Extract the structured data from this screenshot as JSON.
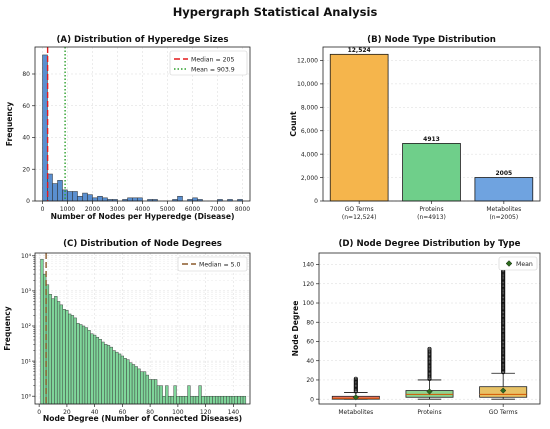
{
  "figure": {
    "title": "Hypergraph Statistical Analysis"
  },
  "chart_data": [
    {
      "id": "a",
      "type": "bar",
      "title": "(A) Distribution of Hyperedge Sizes",
      "xlabel": "Number of Nodes per Hyperedge (Disease)",
      "ylabel": "Frequency",
      "xlim": [
        -300,
        8300
      ],
      "ylim": [
        0,
        97
      ],
      "xticks": [
        0,
        1000,
        2000,
        3000,
        4000,
        5000,
        6000,
        7000,
        8000
      ],
      "yticks": [
        0,
        20,
        40,
        60,
        80
      ],
      "bin_width": 200,
      "bin_start": 0,
      "counts": [
        92,
        17,
        11,
        13,
        7,
        6,
        6,
        3,
        5,
        4,
        2,
        3,
        2,
        1,
        1,
        0,
        1,
        2,
        2,
        2,
        0,
        1,
        1,
        0,
        0,
        0,
        1,
        3,
        0,
        1,
        2,
        1,
        0,
        0,
        0,
        1,
        0,
        1,
        0,
        1
      ],
      "bar_color": "#5a8fd0",
      "lines": [
        {
          "label": "Median = 205",
          "value": 205,
          "color": "#e41a1c",
          "dash": "6 3"
        },
        {
          "label": "Mean = 903.9",
          "value": 903.9,
          "color": "#2ca02c",
          "dash": "1.5 2"
        }
      ],
      "legend_position": "top-right",
      "grid": true
    },
    {
      "id": "b",
      "type": "bar",
      "title": "(B) Node Type Distribution",
      "xlabel": "",
      "ylabel": "Count",
      "ylim": [
        0,
        13150
      ],
      "yticks": [
        0,
        2000,
        4000,
        6000,
        8000,
        10000,
        12000
      ],
      "ytick_labels": [
        "0",
        "2,000",
        "4,000",
        "6,000",
        "8,000",
        "10,000",
        "12,000"
      ],
      "categories": [
        {
          "label": "GO Terms",
          "sublabel": "(n=12,524)",
          "value": 12524,
          "value_label": "12,524",
          "color": "#f5b54c"
        },
        {
          "label": "Proteins",
          "sublabel": "(n=4913)",
          "value": 4913,
          "value_label": "4913",
          "color": "#6fcf8a"
        },
        {
          "label": "Metabolites",
          "sublabel": "(n=2005)",
          "value": 2005,
          "value_label": "2005",
          "color": "#6fa3e0"
        }
      ],
      "grid": true
    },
    {
      "id": "c",
      "type": "bar",
      "title": "(C) Distribution of Node Degrees",
      "xlabel": "Node Degree (Number of Connected Diseases)",
      "ylabel": "Frequency",
      "yscale": "log",
      "xlim": [
        -3,
        152
      ],
      "ylim": [
        0.6,
        12000
      ],
      "xticks": [
        0,
        20,
        40,
        60,
        80,
        100,
        120,
        140
      ],
      "yticks": [
        1,
        10,
        100,
        1000,
        10000
      ],
      "ytick_labels": [
        "10⁰",
        "10¹",
        "10²",
        "10³",
        "10⁴"
      ],
      "bin_width": 2,
      "bin_start": 1,
      "counts": [
        8000,
        3000,
        1500,
        800,
        600,
        700,
        500,
        400,
        300,
        280,
        220,
        200,
        170,
        120,
        110,
        100,
        90,
        75,
        60,
        55,
        48,
        42,
        35,
        30,
        28,
        25,
        20,
        18,
        16,
        14,
        12,
        11,
        9,
        8,
        7,
        6,
        5,
        5,
        4,
        3,
        3,
        3,
        2,
        2,
        1,
        2,
        1,
        1,
        2,
        1,
        1,
        1,
        1,
        2,
        1,
        1,
        1,
        2,
        1,
        1,
        1,
        1,
        1,
        1,
        1,
        1,
        1,
        1,
        1,
        1,
        1,
        1,
        1,
        1
      ],
      "bar_color": "#7fd69a",
      "median_line": {
        "label": "Median = 5.0",
        "value": 5.0,
        "color": "#8b5a2b",
        "dash": "6 3"
      },
      "legend_position": "top-right",
      "grid": true
    },
    {
      "id": "d",
      "type": "box",
      "title": "(D) Node Degree Distribution by Type",
      "xlabel": "",
      "ylabel": "Node Degree",
      "ylim": [
        -5,
        152
      ],
      "yticks": [
        0,
        20,
        40,
        60,
        80,
        100,
        120,
        140
      ],
      "categories": [
        {
          "label": "Metabolites",
          "q1": 0,
          "median": 1,
          "q3": 3,
          "whisker_low": 0,
          "whisker_high": 7,
          "mean": 2,
          "outliers_from": 8,
          "outliers_to": 22,
          "color": "#f08080"
        },
        {
          "label": "Proteins",
          "q1": 2,
          "median": 5,
          "q3": 9,
          "whisker_low": 0,
          "whisker_high": 20,
          "mean": 8,
          "outliers_from": 21,
          "outliers_to": 53,
          "color": "#8fd48f"
        },
        {
          "label": "GO Terms",
          "q1": 2,
          "median": 5,
          "q3": 13,
          "whisker_low": 0,
          "whisker_high": 27,
          "mean": 9,
          "outliers_from": 28,
          "outliers_to": 137,
          "color": "#e8c266"
        }
      ],
      "legend": {
        "label": "Mean"
      },
      "legend_position": "top-right",
      "grid": true
    }
  ]
}
